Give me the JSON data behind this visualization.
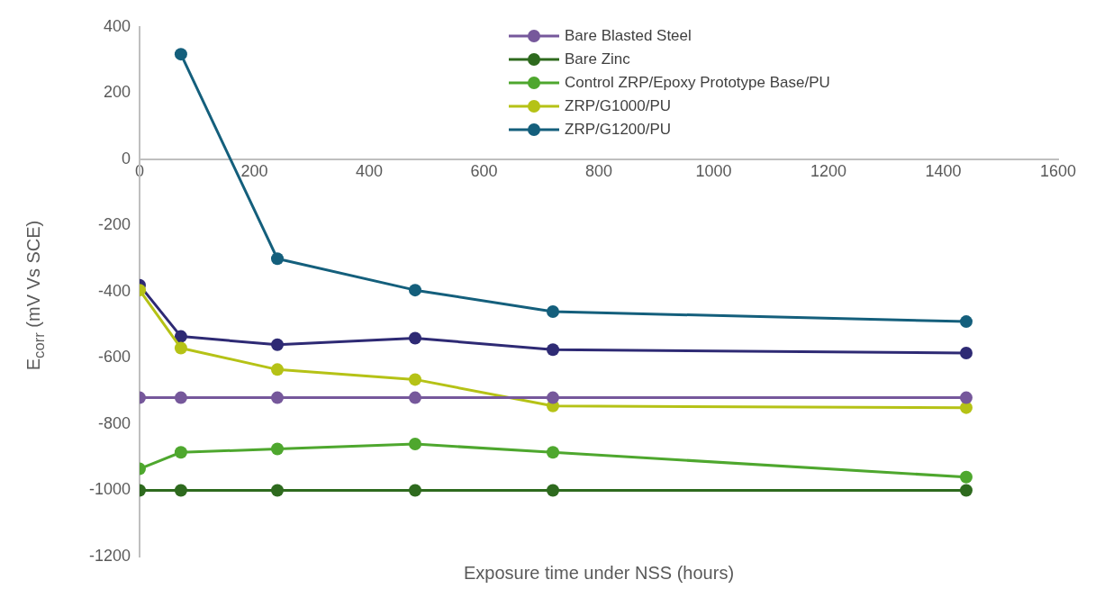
{
  "chart_data": {
    "type": "line",
    "xlabel": "Exposure time under NSS (hours)",
    "ylabel": "E$_{corr}$ (mV Vs SCE)",
    "x": [
      0,
      72,
      240,
      480,
      720,
      1440
    ],
    "xlim": [
      0,
      1600
    ],
    "xticks": [
      0,
      200,
      400,
      600,
      800,
      1000,
      1200,
      1400,
      1600
    ],
    "ylim": [
      -1200,
      400
    ],
    "yticks": [
      -1200,
      -1000,
      -800,
      -600,
      -400,
      -200,
      0,
      200,
      400
    ],
    "grid": false,
    "legend": "top",
    "marker": "circle",
    "line_style": "solid",
    "series": [
      {
        "name": "Bare Blasted Steel",
        "color": "#76589b",
        "values": [
          -720,
          -720,
          -720,
          -720,
          -720,
          -720
        ]
      },
      {
        "name": "Bare Zinc",
        "color": "#2e6a1e",
        "values": [
          -1000,
          -1000,
          -1000,
          -1000,
          -1000,
          -1000
        ]
      },
      {
        "name": "Control ZRP/Epoxy Prototype Base/PU",
        "color": "#4ea72e",
        "values": [
          -935,
          -885,
          -875,
          -860,
          -885,
          -960
        ]
      },
      {
        "name": "ZRP/G1000/PU",
        "color": "#b5c216",
        "values": [
          -395,
          -570,
          -635,
          -665,
          -745,
          -750
        ]
      },
      {
        "name": "ZRP/G1200/PU",
        "color": "#145f7c",
        "values": [
          null,
          318,
          -300,
          -395,
          -460,
          -490
        ]
      },
      {
        "color": "#2e2a74",
        "values": [
          -380,
          -535,
          -560,
          -540,
          -575,
          -585
        ]
      }
    ]
  }
}
